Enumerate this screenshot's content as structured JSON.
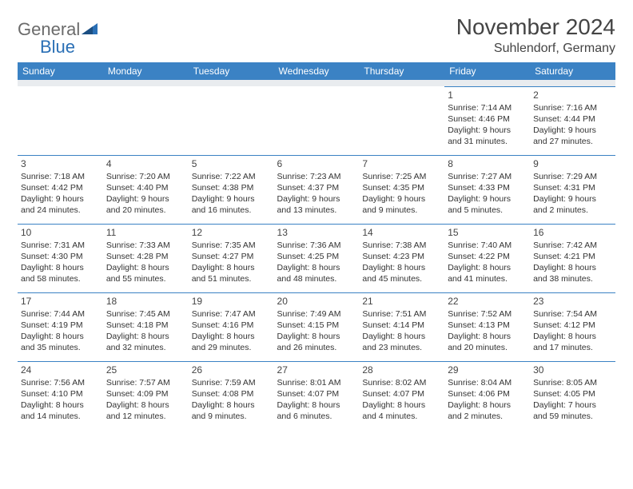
{
  "logo": {
    "text1": "General",
    "text2": "Blue"
  },
  "title": "November 2024",
  "location": "Suhlendorf, Germany",
  "colors": {
    "header_bg": "#3b82c4",
    "header_text": "#ffffff",
    "body_text": "#333333",
    "logo_gray": "#6b6b6b",
    "logo_blue": "#2a6fb5",
    "row_border": "#3b82c4",
    "spacer_bg": "#e9ecef",
    "page_bg": "#ffffff"
  },
  "typography": {
    "title_fontsize": 28,
    "location_fontsize": 16,
    "header_fontsize": 12,
    "cell_fontsize": 10.5,
    "daynum_fontsize": 12
  },
  "day_headers": [
    "Sunday",
    "Monday",
    "Tuesday",
    "Wednesday",
    "Thursday",
    "Friday",
    "Saturday"
  ],
  "weeks": [
    [
      null,
      null,
      null,
      null,
      null,
      {
        "n": "1",
        "sr": "Sunrise: 7:14 AM",
        "ss": "Sunset: 4:46 PM",
        "dl": "Daylight: 9 hours and 31 minutes."
      },
      {
        "n": "2",
        "sr": "Sunrise: 7:16 AM",
        "ss": "Sunset: 4:44 PM",
        "dl": "Daylight: 9 hours and 27 minutes."
      }
    ],
    [
      {
        "n": "3",
        "sr": "Sunrise: 7:18 AM",
        "ss": "Sunset: 4:42 PM",
        "dl": "Daylight: 9 hours and 24 minutes."
      },
      {
        "n": "4",
        "sr": "Sunrise: 7:20 AM",
        "ss": "Sunset: 4:40 PM",
        "dl": "Daylight: 9 hours and 20 minutes."
      },
      {
        "n": "5",
        "sr": "Sunrise: 7:22 AM",
        "ss": "Sunset: 4:38 PM",
        "dl": "Daylight: 9 hours and 16 minutes."
      },
      {
        "n": "6",
        "sr": "Sunrise: 7:23 AM",
        "ss": "Sunset: 4:37 PM",
        "dl": "Daylight: 9 hours and 13 minutes."
      },
      {
        "n": "7",
        "sr": "Sunrise: 7:25 AM",
        "ss": "Sunset: 4:35 PM",
        "dl": "Daylight: 9 hours and 9 minutes."
      },
      {
        "n": "8",
        "sr": "Sunrise: 7:27 AM",
        "ss": "Sunset: 4:33 PM",
        "dl": "Daylight: 9 hours and 5 minutes."
      },
      {
        "n": "9",
        "sr": "Sunrise: 7:29 AM",
        "ss": "Sunset: 4:31 PM",
        "dl": "Daylight: 9 hours and 2 minutes."
      }
    ],
    [
      {
        "n": "10",
        "sr": "Sunrise: 7:31 AM",
        "ss": "Sunset: 4:30 PM",
        "dl": "Daylight: 8 hours and 58 minutes."
      },
      {
        "n": "11",
        "sr": "Sunrise: 7:33 AM",
        "ss": "Sunset: 4:28 PM",
        "dl": "Daylight: 8 hours and 55 minutes."
      },
      {
        "n": "12",
        "sr": "Sunrise: 7:35 AM",
        "ss": "Sunset: 4:27 PM",
        "dl": "Daylight: 8 hours and 51 minutes."
      },
      {
        "n": "13",
        "sr": "Sunrise: 7:36 AM",
        "ss": "Sunset: 4:25 PM",
        "dl": "Daylight: 8 hours and 48 minutes."
      },
      {
        "n": "14",
        "sr": "Sunrise: 7:38 AM",
        "ss": "Sunset: 4:23 PM",
        "dl": "Daylight: 8 hours and 45 minutes."
      },
      {
        "n": "15",
        "sr": "Sunrise: 7:40 AM",
        "ss": "Sunset: 4:22 PM",
        "dl": "Daylight: 8 hours and 41 minutes."
      },
      {
        "n": "16",
        "sr": "Sunrise: 7:42 AM",
        "ss": "Sunset: 4:21 PM",
        "dl": "Daylight: 8 hours and 38 minutes."
      }
    ],
    [
      {
        "n": "17",
        "sr": "Sunrise: 7:44 AM",
        "ss": "Sunset: 4:19 PM",
        "dl": "Daylight: 8 hours and 35 minutes."
      },
      {
        "n": "18",
        "sr": "Sunrise: 7:45 AM",
        "ss": "Sunset: 4:18 PM",
        "dl": "Daylight: 8 hours and 32 minutes."
      },
      {
        "n": "19",
        "sr": "Sunrise: 7:47 AM",
        "ss": "Sunset: 4:16 PM",
        "dl": "Daylight: 8 hours and 29 minutes."
      },
      {
        "n": "20",
        "sr": "Sunrise: 7:49 AM",
        "ss": "Sunset: 4:15 PM",
        "dl": "Daylight: 8 hours and 26 minutes."
      },
      {
        "n": "21",
        "sr": "Sunrise: 7:51 AM",
        "ss": "Sunset: 4:14 PM",
        "dl": "Daylight: 8 hours and 23 minutes."
      },
      {
        "n": "22",
        "sr": "Sunrise: 7:52 AM",
        "ss": "Sunset: 4:13 PM",
        "dl": "Daylight: 8 hours and 20 minutes."
      },
      {
        "n": "23",
        "sr": "Sunrise: 7:54 AM",
        "ss": "Sunset: 4:12 PM",
        "dl": "Daylight: 8 hours and 17 minutes."
      }
    ],
    [
      {
        "n": "24",
        "sr": "Sunrise: 7:56 AM",
        "ss": "Sunset: 4:10 PM",
        "dl": "Daylight: 8 hours and 14 minutes."
      },
      {
        "n": "25",
        "sr": "Sunrise: 7:57 AM",
        "ss": "Sunset: 4:09 PM",
        "dl": "Daylight: 8 hours and 12 minutes."
      },
      {
        "n": "26",
        "sr": "Sunrise: 7:59 AM",
        "ss": "Sunset: 4:08 PM",
        "dl": "Daylight: 8 hours and 9 minutes."
      },
      {
        "n": "27",
        "sr": "Sunrise: 8:01 AM",
        "ss": "Sunset: 4:07 PM",
        "dl": "Daylight: 8 hours and 6 minutes."
      },
      {
        "n": "28",
        "sr": "Sunrise: 8:02 AM",
        "ss": "Sunset: 4:07 PM",
        "dl": "Daylight: 8 hours and 4 minutes."
      },
      {
        "n": "29",
        "sr": "Sunrise: 8:04 AM",
        "ss": "Sunset: 4:06 PM",
        "dl": "Daylight: 8 hours and 2 minutes."
      },
      {
        "n": "30",
        "sr": "Sunrise: 8:05 AM",
        "ss": "Sunset: 4:05 PM",
        "dl": "Daylight: 7 hours and 59 minutes."
      }
    ]
  ]
}
